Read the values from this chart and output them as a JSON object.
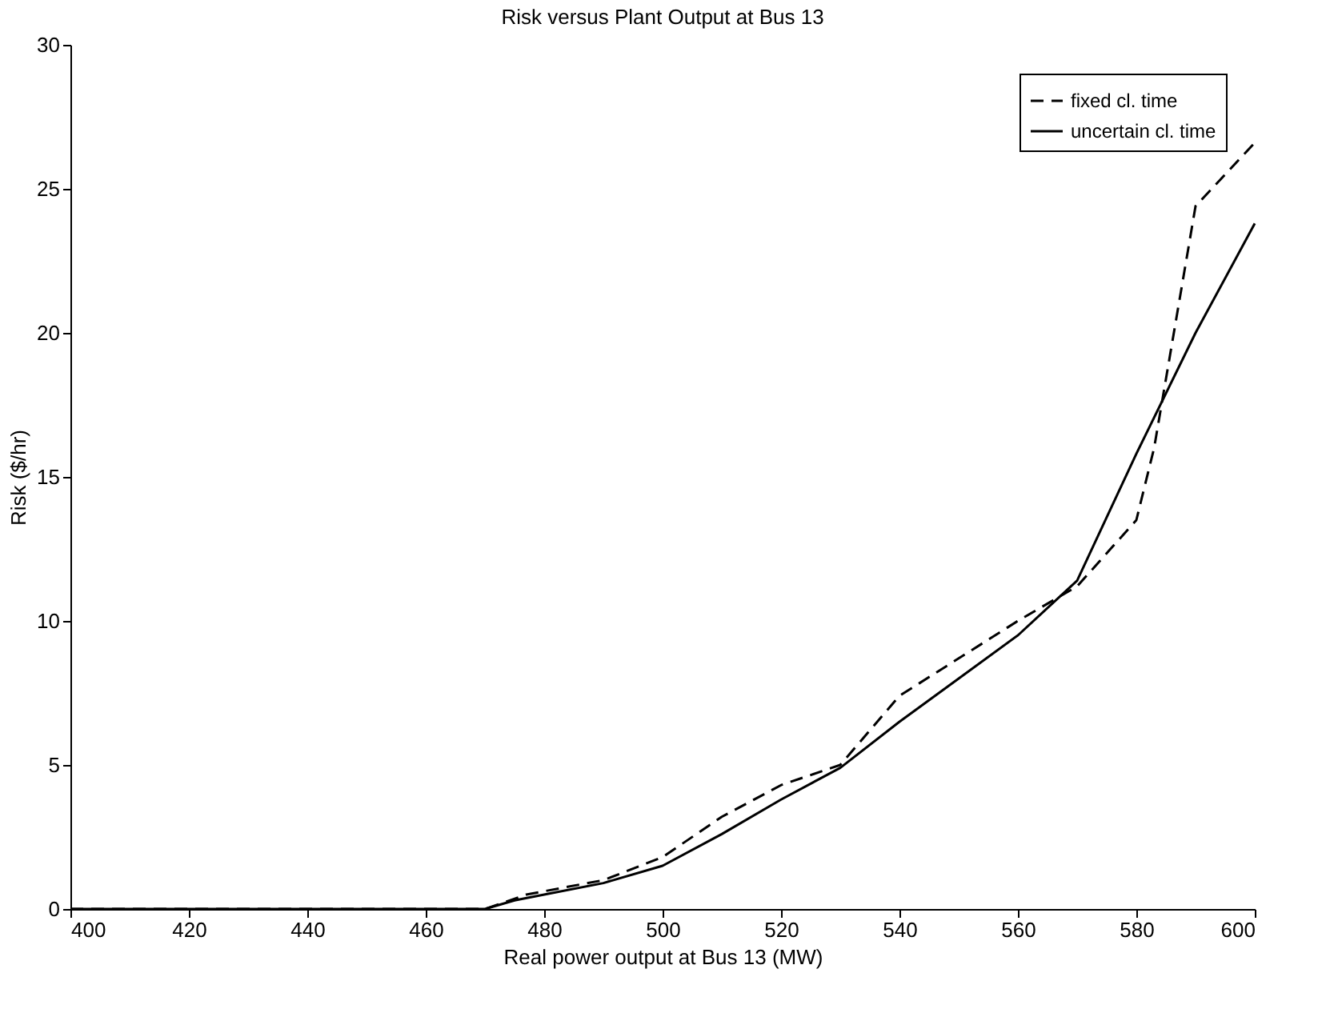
{
  "chart_data": {
    "type": "line",
    "title": "Risk versus Plant Output at Bus 13",
    "xlabel": "Real power output at Bus 13 (MW)",
    "ylabel": "Risk ($/hr)",
    "xlim": [
      400,
      600
    ],
    "xticks": [
      400,
      420,
      440,
      460,
      480,
      500,
      520,
      540,
      560,
      580,
      600
    ],
    "ylim": [
      0,
      30
    ],
    "yticks": [
      0,
      5,
      10,
      15,
      20,
      25,
      30
    ],
    "grid": false,
    "legend": "top right",
    "series": [
      {
        "name": "fixed cl. time",
        "color": "#000000",
        "line_style": "dashed",
        "x": [
          400,
          460,
          470,
          477,
          490,
          500,
          510,
          520,
          530,
          540,
          550,
          560,
          570,
          580,
          583,
          590,
          600
        ],
        "values": [
          0,
          0,
          0,
          0.5,
          1.0,
          1.8,
          3.2,
          4.3,
          5.0,
          7.4,
          8.7,
          10.0,
          11.2,
          13.5,
          16.0,
          24.4,
          26.6
        ]
      },
      {
        "name": "uncertain cl. time",
        "color": "#000000",
        "line_style": "solid",
        "x": [
          400,
          460,
          470,
          475,
          480,
          490,
          500,
          510,
          520,
          530,
          540,
          550,
          560,
          570,
          580,
          590,
          600
        ],
        "values": [
          0,
          0,
          0,
          0.3,
          0.5,
          0.9,
          1.5,
          2.6,
          3.8,
          4.9,
          6.5,
          8.0,
          9.5,
          11.4,
          15.8,
          20.0,
          23.8
        ]
      }
    ]
  }
}
